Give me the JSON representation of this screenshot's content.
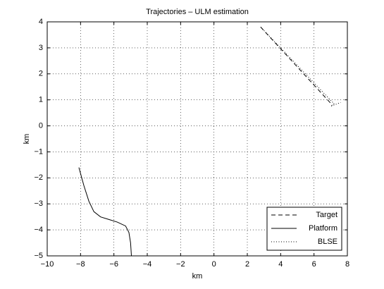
{
  "chart_data": {
    "type": "line",
    "title": "Trajectories – ULM estimation",
    "x_label": "km",
    "y_label": "km",
    "xlim": [
      -10,
      8
    ],
    "ylim": [
      -5,
      4
    ],
    "xticks": [
      {
        "value": -10,
        "label": "−10"
      },
      {
        "value": -8,
        "label": "−8"
      },
      {
        "value": -6,
        "label": "−6"
      },
      {
        "value": -4,
        "label": "−4"
      },
      {
        "value": -2,
        "label": "−2"
      },
      0,
      2,
      4,
      6,
      8
    ],
    "yticks": [
      {
        "value": -5,
        "label": "−5"
      },
      {
        "value": -4,
        "label": "−4"
      },
      {
        "value": -3,
        "label": "−3"
      },
      {
        "value": -2,
        "label": "−2"
      },
      {
        "value": -1,
        "label": "−1"
      },
      0,
      1,
      2,
      3,
      4
    ],
    "grid": true,
    "legend": "lower right",
    "series": [
      {
        "name": "Target",
        "color": "#000000",
        "style": "dashed",
        "x": [
          2.8,
          7.1
        ],
        "values": [
          3.8,
          0.8
        ]
      },
      {
        "name": "Platform",
        "color": "#000000",
        "style": "solid",
        "x": [
          -8.1,
          -7.8,
          -7.5,
          -7.2,
          -6.8,
          -6.3,
          -5.8,
          -5.3,
          -5.1,
          -5.0,
          -4.95
        ],
        "values": [
          -1.6,
          -2.3,
          -2.9,
          -3.3,
          -3.5,
          -3.6,
          -3.7,
          -3.85,
          -4.1,
          -4.5,
          -5.0
        ]
      },
      {
        "name": "BLSE",
        "color": "#000000",
        "style": "dotted",
        "x": [
          2.8,
          7.2,
          7.0,
          7.6
        ],
        "values": [
          3.8,
          0.85,
          0.75,
          0.9
        ]
      }
    ]
  }
}
